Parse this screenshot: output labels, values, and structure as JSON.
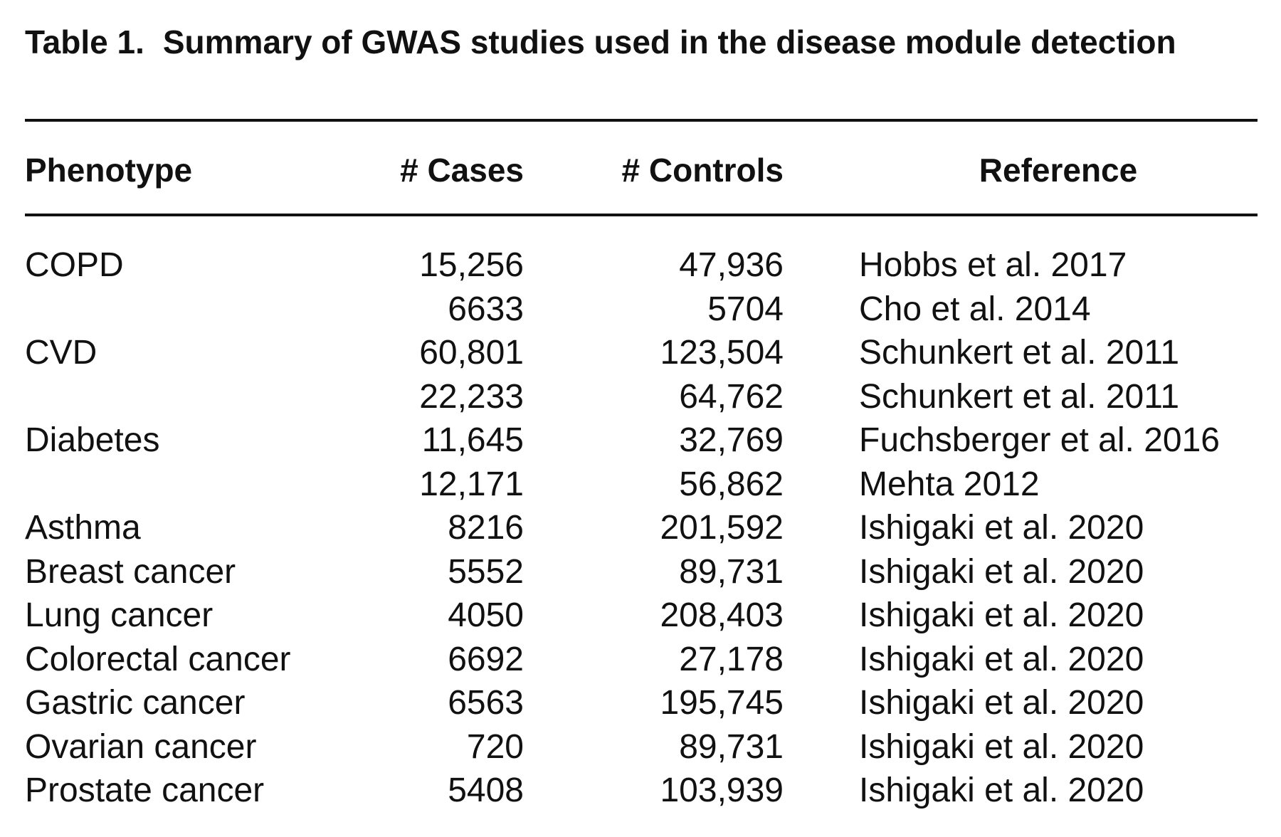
{
  "caption": {
    "label": "Table 1.",
    "text": "Summary of GWAS studies used in the disease module detection"
  },
  "table": {
    "header": [
      "Phenotype",
      "# Cases",
      "# Controls",
      "Reference"
    ],
    "rows": [
      [
        "COPD",
        "15,256",
        "47,936",
        "Hobbs et al. 2017"
      ],
      [
        null,
        "6633",
        "5704",
        "Cho et al. 2014"
      ],
      [
        "CVD",
        "60,801",
        "123,504",
        "Schunkert et al. 2011"
      ],
      [
        null,
        "22,233",
        "64,762",
        "Schunkert et al. 2011"
      ],
      [
        "Diabetes",
        "11,645",
        "32,769",
        "Fuchsberger et al. 2016"
      ],
      [
        null,
        "12,171",
        "56,862",
        "Mehta 2012"
      ],
      [
        "Asthma",
        "8216",
        "201,592",
        "Ishigaki et al. 2020"
      ],
      [
        "Breast cancer",
        "5552",
        "89,731",
        "Ishigaki et al. 2020"
      ],
      [
        "Lung cancer",
        "4050",
        "208,403",
        "Ishigaki et al. 2020"
      ],
      [
        "Colorectal cancer",
        "6692",
        "27,178",
        "Ishigaki et al. 2020"
      ],
      [
        "Gastric cancer",
        "6563",
        "195,745",
        "Ishigaki et al. 2020"
      ],
      [
        "Ovarian cancer",
        "720",
        "89,731",
        "Ishigaki et al. 2020"
      ],
      [
        "Prostate cancer",
        "5408",
        "103,939",
        "Ishigaki et al. 2020"
      ]
    ]
  }
}
